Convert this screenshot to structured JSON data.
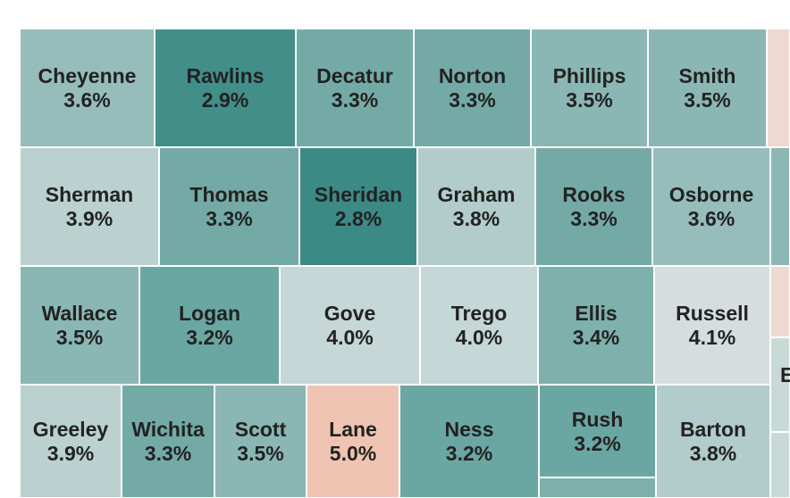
{
  "colors": {
    "c28": "#3b8a85",
    "c29": "#428e89",
    "c32": "#6ba7a2",
    "c33": "#74aaa6",
    "c34": "#7eb0ac",
    "c35": "#8ab7b3",
    "c36": "#96bdba",
    "c38": "#b1ccca",
    "c39": "#bad1cf",
    "c40": "#c5d7d6",
    "c41": "#d5dedd",
    "c50": "#efc4b2",
    "stub_pink": "#eed9d1",
    "stub_teal": "#8bb8b4",
    "stub_grey": "#c8dad8",
    "stub_bottom": "#7eb0ac"
  },
  "counties": [
    {
      "id": "cheyenne",
      "name": "Cheyenne",
      "value": "3.6%",
      "color": "c36"
    },
    {
      "id": "rawlins",
      "name": "Rawlins",
      "value": "2.9%",
      "color": "c29"
    },
    {
      "id": "decatur",
      "name": "Decatur",
      "value": "3.3%",
      "color": "c33"
    },
    {
      "id": "norton",
      "name": "Norton",
      "value": "3.3%",
      "color": "c33"
    },
    {
      "id": "phillips",
      "name": "Phillips",
      "value": "3.5%",
      "color": "c35"
    },
    {
      "id": "smith",
      "name": "Smith",
      "value": "3.5%",
      "color": "c35"
    },
    {
      "id": "sherman",
      "name": "Sherman",
      "value": "3.9%",
      "color": "c39"
    },
    {
      "id": "thomas",
      "name": "Thomas",
      "value": "3.3%",
      "color": "c33"
    },
    {
      "id": "sheridan",
      "name": "Sheridan",
      "value": "2.8%",
      "color": "c28"
    },
    {
      "id": "graham",
      "name": "Graham",
      "value": "3.8%",
      "color": "c38"
    },
    {
      "id": "rooks",
      "name": "Rooks",
      "value": "3.3%",
      "color": "c33"
    },
    {
      "id": "osborne",
      "name": "Osborne",
      "value": "3.6%",
      "color": "c36"
    },
    {
      "id": "wallace",
      "name": "Wallace",
      "value": "3.5%",
      "color": "c35"
    },
    {
      "id": "logan",
      "name": "Logan",
      "value": "3.2%",
      "color": "c32"
    },
    {
      "id": "gove",
      "name": "Gove",
      "value": "4.0%",
      "color": "c40"
    },
    {
      "id": "trego",
      "name": "Trego",
      "value": "4.0%",
      "color": "c40"
    },
    {
      "id": "ellis",
      "name": "Ellis",
      "value": "3.4%",
      "color": "c34"
    },
    {
      "id": "russell",
      "name": "Russell",
      "value": "4.1%",
      "color": "c41"
    },
    {
      "id": "greeley",
      "name": "Greeley",
      "value": "3.9%",
      "color": "c39"
    },
    {
      "id": "wichita",
      "name": "Wichita",
      "value": "3.3%",
      "color": "c33"
    },
    {
      "id": "scott",
      "name": "Scott",
      "value": "3.5%",
      "color": "c35"
    },
    {
      "id": "lane",
      "name": "Lane",
      "value": "5.0%",
      "color": "c50"
    },
    {
      "id": "ness",
      "name": "Ness",
      "value": "3.2%",
      "color": "c32"
    },
    {
      "id": "rush",
      "name": "Rush",
      "value": "3.2%",
      "color": "c32"
    },
    {
      "id": "barton",
      "name": "Barton",
      "value": "3.8%",
      "color": "c38"
    }
  ],
  "edge_label": "E"
}
